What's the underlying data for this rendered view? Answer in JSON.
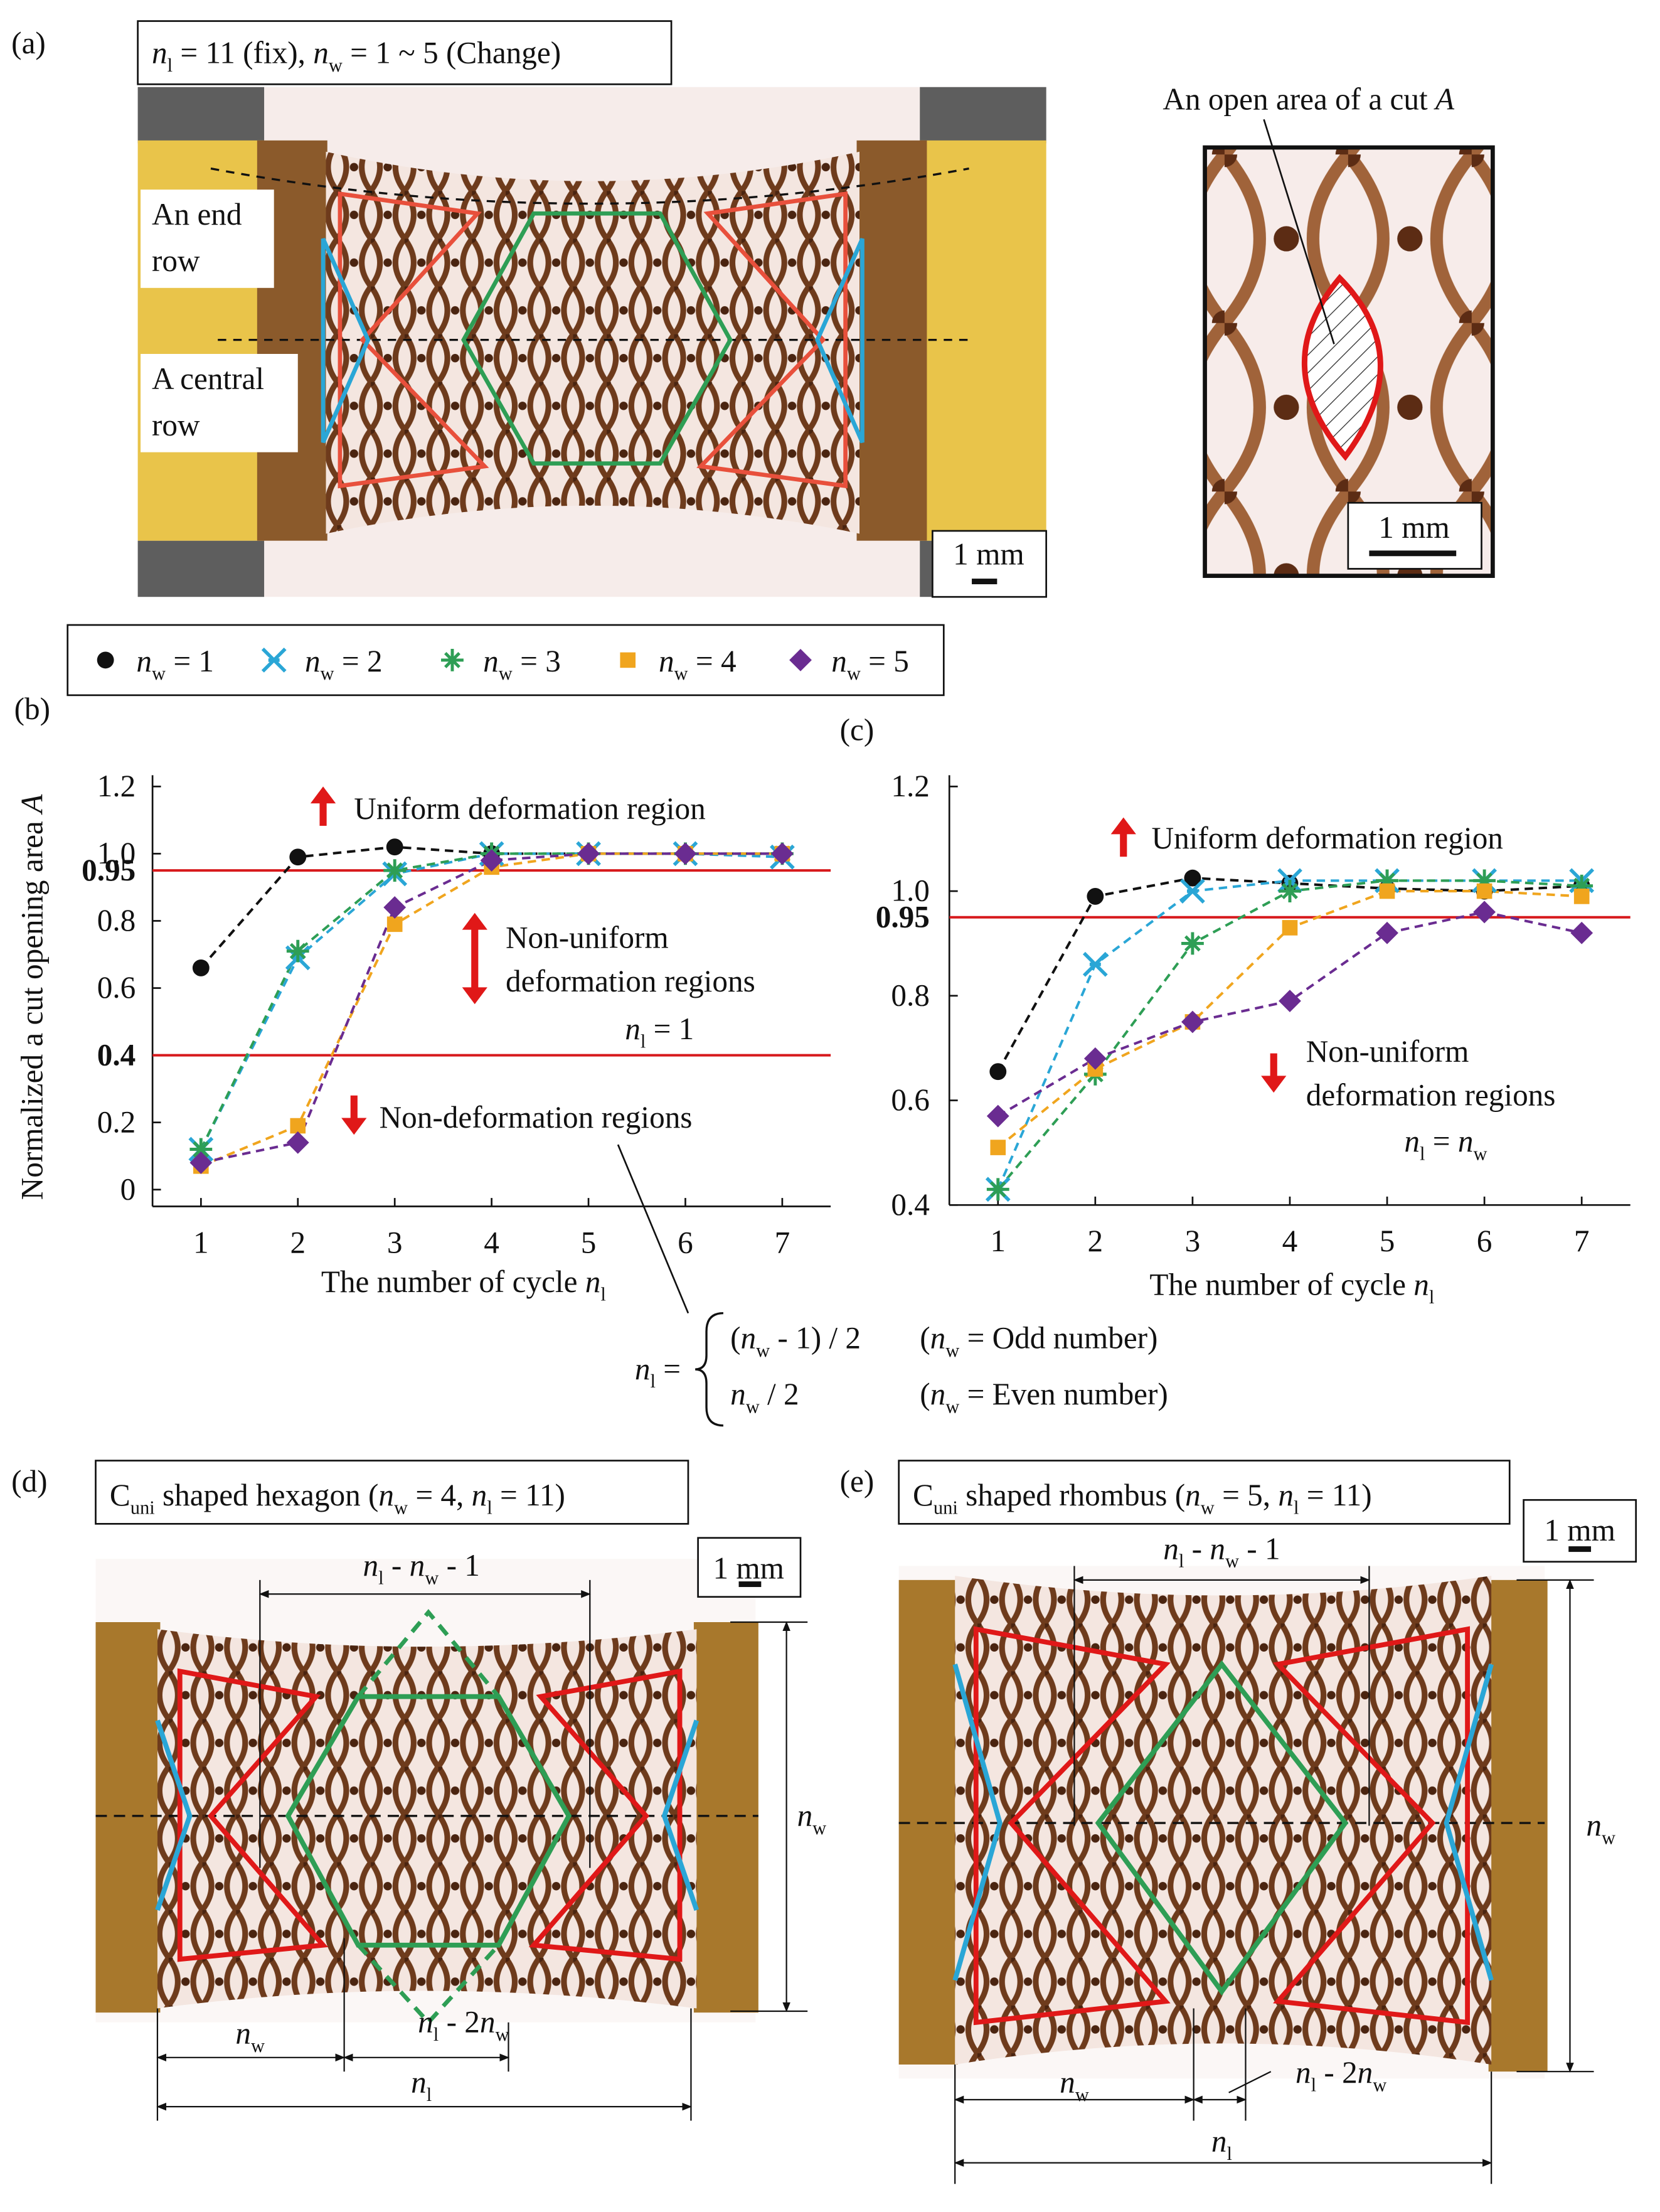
{
  "panel_a": {
    "label": "(a)",
    "title": [
      {
        "it": "n"
      },
      {
        "sub": "l"
      },
      " = 11 (fix), ",
      {
        "it": "n"
      },
      {
        "sub": "w"
      },
      " = 1 ~ 5 (Change)"
    ],
    "row_labels": [
      "An end",
      "row",
      "A central",
      "row"
    ],
    "scale": "1 mm",
    "inset_title": [
      "An open area of a cut ",
      {
        "it": "A"
      }
    ],
    "inset_scale": "1 mm"
  },
  "chart_data": [
    {
      "type": "line",
      "label": "(b)",
      "ylabel": [
        "Normalized a cut opening area ",
        {
          "it": "A"
        }
      ],
      "xlabel": [
        "The number of cycle  ",
        {
          "it": "n"
        },
        {
          "sub": "l"
        }
      ],
      "x": [
        1,
        2,
        3,
        4,
        5,
        6,
        7
      ],
      "xlim": [
        0.5,
        7.5
      ],
      "xticks": [
        1,
        2,
        3,
        4,
        5,
        6,
        7
      ],
      "ylim": [
        -0.05,
        1.2
      ],
      "yticks": [
        0,
        0.2,
        {
          "value": 0.4,
          "label": "0.4",
          "bold": true
        },
        0.6,
        0.8,
        {
          "value": 0.95,
          "label": "0.95",
          "bold": true
        },
        {
          "value": 1,
          "label": "1.0"
        },
        1.2
      ],
      "reference_lines": [
        0.95,
        0.4
      ],
      "reference_color": "#d7191c",
      "line_style": "dashed",
      "series": [
        {
          "name": [
            {
              "it": "n"
            },
            {
              "sub": "w"
            },
            " = 1"
          ],
          "color": "#111111",
          "marker": "circle",
          "values": [
            0.66,
            0.99,
            1.02,
            1.0,
            1.0,
            1.0,
            1.0
          ]
        },
        {
          "name": [
            {
              "it": "n"
            },
            {
              "sub": "w"
            },
            " = 2"
          ],
          "color": "#2aa6d6",
          "marker": "cross",
          "values": [
            0.12,
            0.69,
            0.94,
            1.0,
            1.0,
            1.0,
            0.99
          ]
        },
        {
          "name": [
            {
              "it": "n"
            },
            {
              "sub": "w"
            },
            " = 3"
          ],
          "color": "#2e9e55",
          "marker": "star",
          "values": [
            0.12,
            0.71,
            0.95,
            1.0,
            1.0,
            1.0,
            1.0
          ]
        },
        {
          "name": [
            {
              "it": "n"
            },
            {
              "sub": "w"
            },
            " = 4"
          ],
          "color": "#f0a51e",
          "marker": "square",
          "values": [
            0.07,
            0.19,
            0.79,
            0.96,
            1.0,
            1.0,
            1.0
          ]
        },
        {
          "name": [
            {
              "it": "n"
            },
            {
              "sub": "w"
            },
            " = 5"
          ],
          "color": "#6a2c91",
          "marker": "diamond",
          "values": [
            0.08,
            0.14,
            0.84,
            0.98,
            1.0,
            1.0,
            1.0
          ]
        }
      ],
      "annotations": [
        [
          "Uniform deformation region"
        ],
        [
          "Non-uniform"
        ],
        [
          "deformation regions"
        ],
        [
          {
            "it": "n"
          },
          {
            "sub": "l"
          },
          " = 1"
        ],
        [
          "Non-deformation regions"
        ]
      ]
    },
    {
      "type": "line",
      "label": "(c)",
      "xlabel": [
        "The number of cycle ",
        {
          "it": "n"
        },
        {
          "sub": "l"
        }
      ],
      "x": [
        1,
        2,
        3,
        4,
        5,
        6,
        7
      ],
      "xlim": [
        0.5,
        7.5
      ],
      "xticks": [
        1,
        2,
        3,
        4,
        5,
        6,
        7
      ],
      "ylim": [
        0.4,
        1.2
      ],
      "yticks": [
        0.4,
        0.6,
        0.8,
        {
          "value": 0.95,
          "label": "0.95",
          "bold": true
        },
        {
          "value": 1,
          "label": "1.0"
        },
        1.2
      ],
      "reference_lines": [
        0.95
      ],
      "reference_color": "#d7191c",
      "line_style": "dashed",
      "series": [
        {
          "color": "#111111",
          "marker": "circle",
          "values": [
            0.655,
            0.99,
            1.025,
            1.015,
            1.005,
            1.0,
            1.01
          ]
        },
        {
          "color": "#2aa6d6",
          "marker": "cross",
          "values": [
            0.43,
            0.86,
            1.0,
            1.02,
            1.02,
            1.02,
            1.02
          ]
        },
        {
          "color": "#2e9e55",
          "marker": "star",
          "values": [
            0.43,
            0.65,
            0.9,
            1.0,
            1.02,
            1.02,
            1.01
          ]
        },
        {
          "color": "#f0a51e",
          "marker": "square",
          "values": [
            0.51,
            0.66,
            0.75,
            0.93,
            1.0,
            1.0,
            0.99
          ]
        },
        {
          "color": "#6a2c91",
          "marker": "diamond",
          "values": [
            0.57,
            0.68,
            0.75,
            0.79,
            0.92,
            0.96,
            0.92
          ]
        }
      ],
      "annotations": [
        [
          "Uniform deformation region"
        ],
        [
          "Non-uniform"
        ],
        [
          "deformation regions"
        ],
        [
          {
            "it": "n"
          },
          {
            "sub": "l"
          },
          " = ",
          {
            "it": "n"
          },
          {
            "sub": "w"
          }
        ]
      ]
    }
  ],
  "formula": {
    "lhs": [
      {
        "it": "n"
      },
      {
        "sub": "l"
      },
      " ="
    ],
    "cases": [
      [
        [
          "(",
          {
            "it": "n"
          },
          {
            "sub": "w"
          },
          " - 1) / 2"
        ],
        [
          "(",
          {
            "it": "n"
          },
          {
            "sub": "w"
          },
          " = Odd number)"
        ]
      ],
      [
        [
          {
            "it": "n"
          },
          {
            "sub": "w"
          },
          " / 2"
        ],
        [
          "(",
          {
            "it": "n"
          },
          {
            "sub": "w"
          },
          " = Even number)"
        ]
      ]
    ]
  },
  "panel_d": {
    "label": "(d)",
    "title": [
      "C",
      {
        "sub": "uni"
      },
      " shaped hexagon (",
      {
        "it": "n"
      },
      {
        "sub": "w"
      },
      " = 4, ",
      {
        "it": "n"
      },
      {
        "sub": "l"
      },
      " = 11)"
    ],
    "scale": "1 mm",
    "dims": [
      [
        {
          "it": "n"
        },
        {
          "sub": "l"
        },
        " - ",
        {
          "it": "n"
        },
        {
          "sub": "w"
        },
        " - 1"
      ],
      [
        {
          "it": "n"
        },
        {
          "sub": "w"
        }
      ],
      [
        {
          "it": "n"
        },
        {
          "sub": "w"
        }
      ],
      [
        {
          "it": "n"
        },
        {
          "sub": "l"
        },
        " - 2",
        {
          "it": "n"
        },
        {
          "sub": "w"
        }
      ],
      [
        {
          "it": "n"
        },
        {
          "sub": "l"
        }
      ]
    ]
  },
  "panel_e": {
    "label": "(e)",
    "title": [
      "C",
      {
        "sub": "uni"
      },
      " shaped rhombus (",
      {
        "it": "n"
      },
      {
        "sub": "w"
      },
      " = 5, ",
      {
        "it": "n"
      },
      {
        "sub": "l"
      },
      " = 11)"
    ],
    "scale": "1 mm",
    "dims": [
      [
        {
          "it": "n"
        },
        {
          "sub": "l"
        },
        " - ",
        {
          "it": "n"
        },
        {
          "sub": "w"
        },
        " - 1"
      ],
      [
        {
          "it": "n"
        },
        {
          "sub": "w"
        }
      ],
      [
        {
          "it": "n"
        },
        {
          "sub": "w"
        }
      ],
      [
        {
          "it": "n"
        },
        {
          "sub": "l"
        },
        " - 2",
        {
          "it": "n"
        },
        {
          "sub": "w"
        }
      ],
      [
        {
          "it": "n"
        },
        {
          "sub": "l"
        }
      ]
    ]
  }
}
